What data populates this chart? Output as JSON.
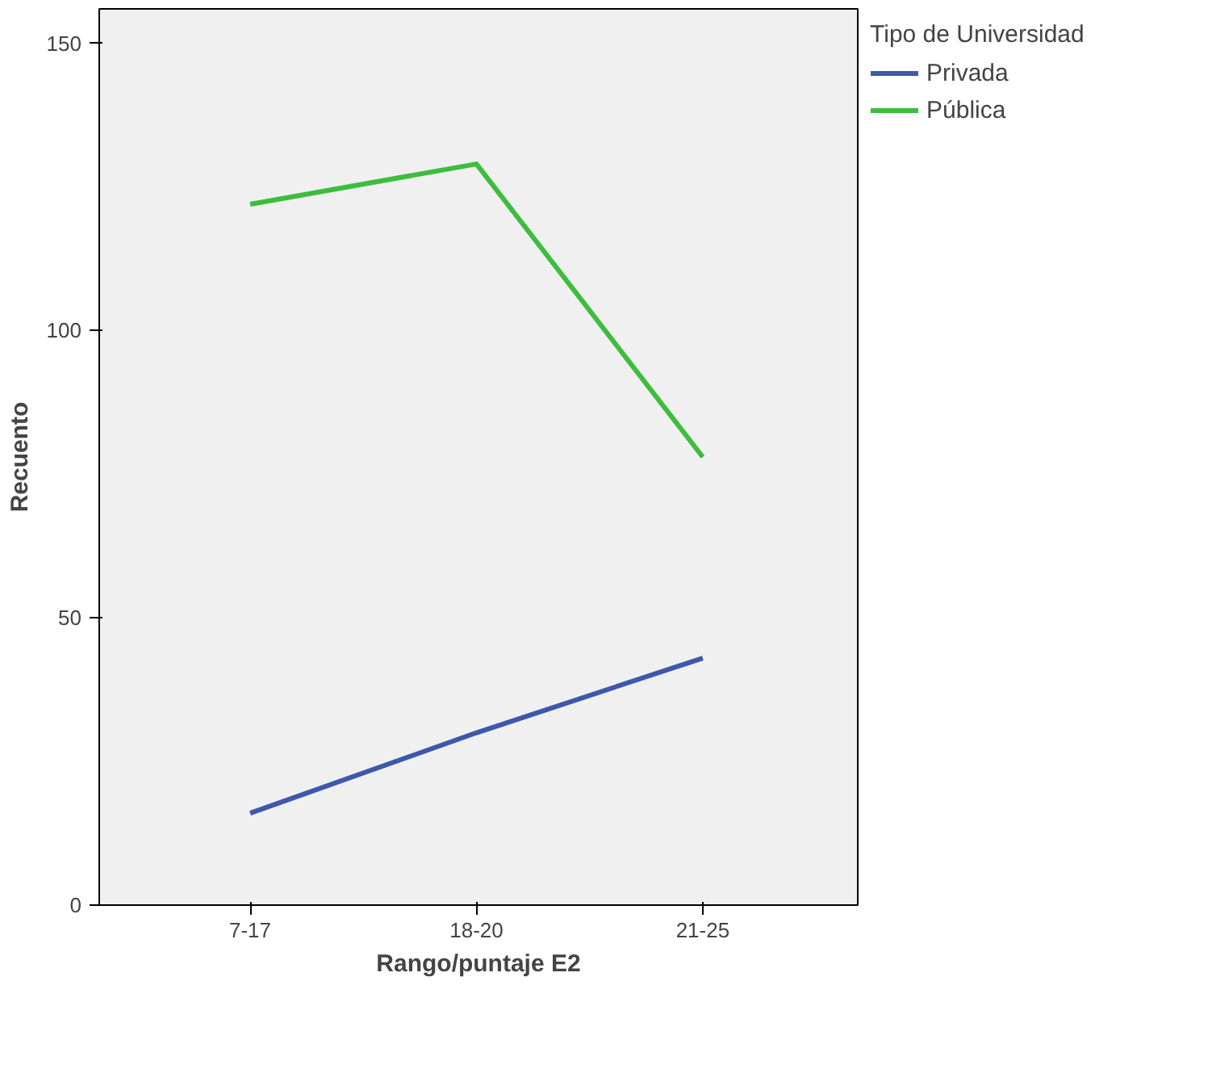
{
  "chart_data": {
    "type": "line",
    "xlabel": "Rango/puntaje E2",
    "ylabel": "Recuento",
    "legend_title": "Tipo de Universidad",
    "categories": [
      "7-17",
      "18-20",
      "21-25"
    ],
    "series": [
      {
        "name": "Privada",
        "color": "#3e58ac",
        "values": [
          16,
          30,
          43
        ]
      },
      {
        "name": "Pública",
        "color": "#3dbd3d",
        "values": [
          122,
          129,
          78
        ]
      }
    ],
    "ylim": [
      0,
      156
    ],
    "yticks": [
      0,
      50,
      100,
      150
    ],
    "grid": false,
    "legend": "top right",
    "marker": "none",
    "line_style": "solid"
  }
}
